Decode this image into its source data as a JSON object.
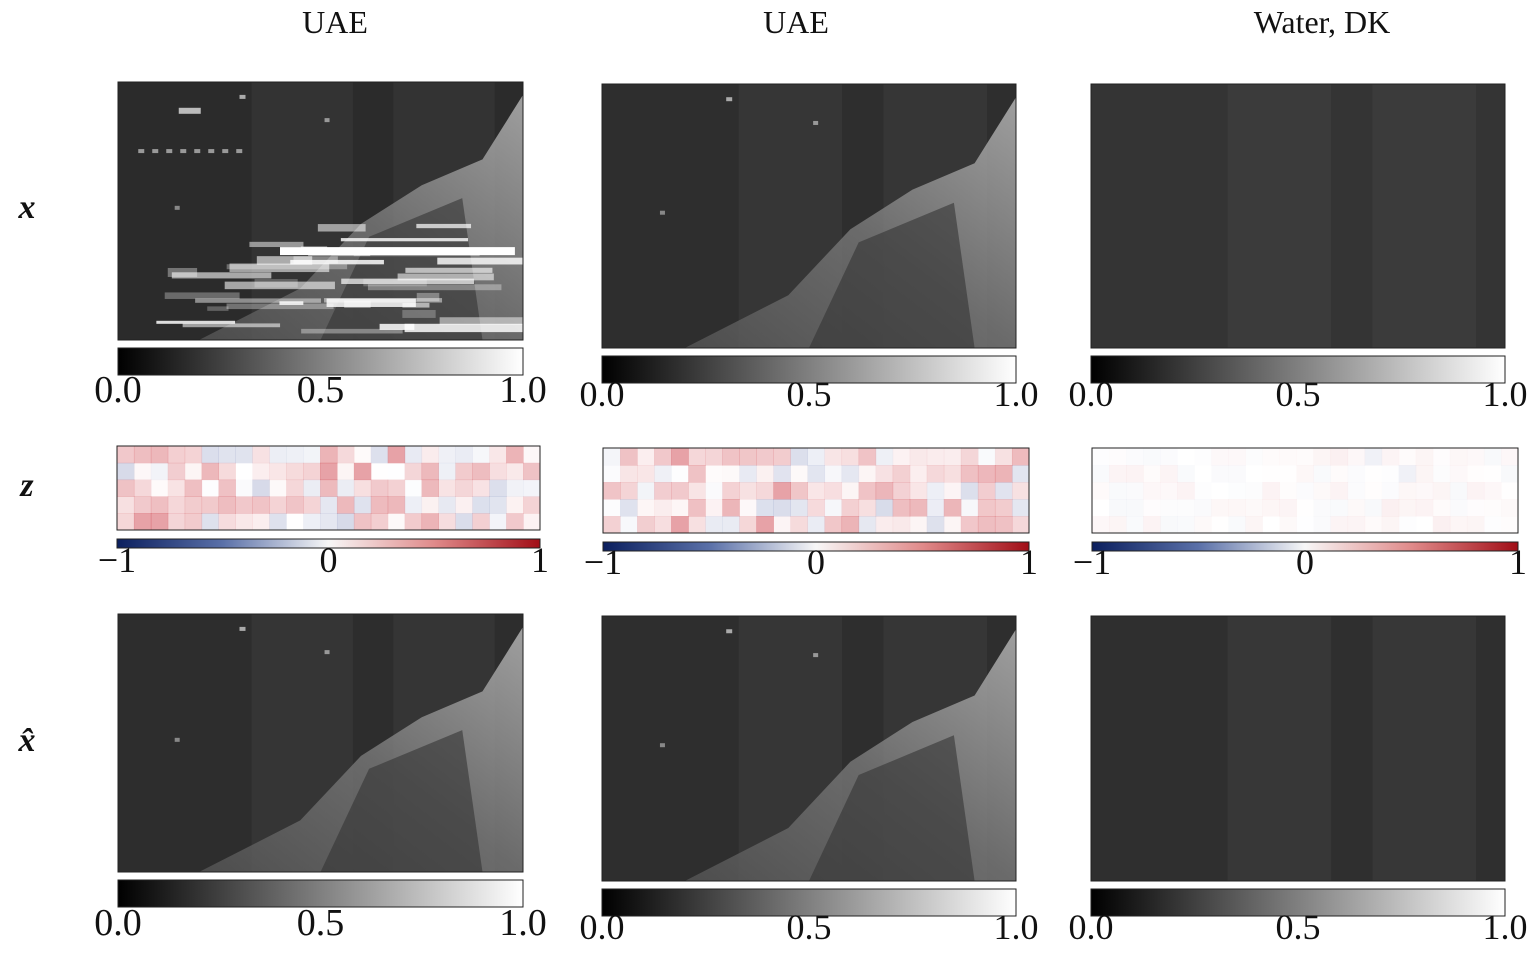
{
  "column_titles": [
    "UAE",
    "UAE",
    "Water, DK"
  ],
  "row_labels": [
    "x",
    "z",
    "x̂"
  ],
  "colorbar_ticks": {
    "intensity": [
      "0.0",
      "0.5",
      "1.0"
    ],
    "latent": [
      "−1",
      "0",
      "1"
    ]
  }
}
